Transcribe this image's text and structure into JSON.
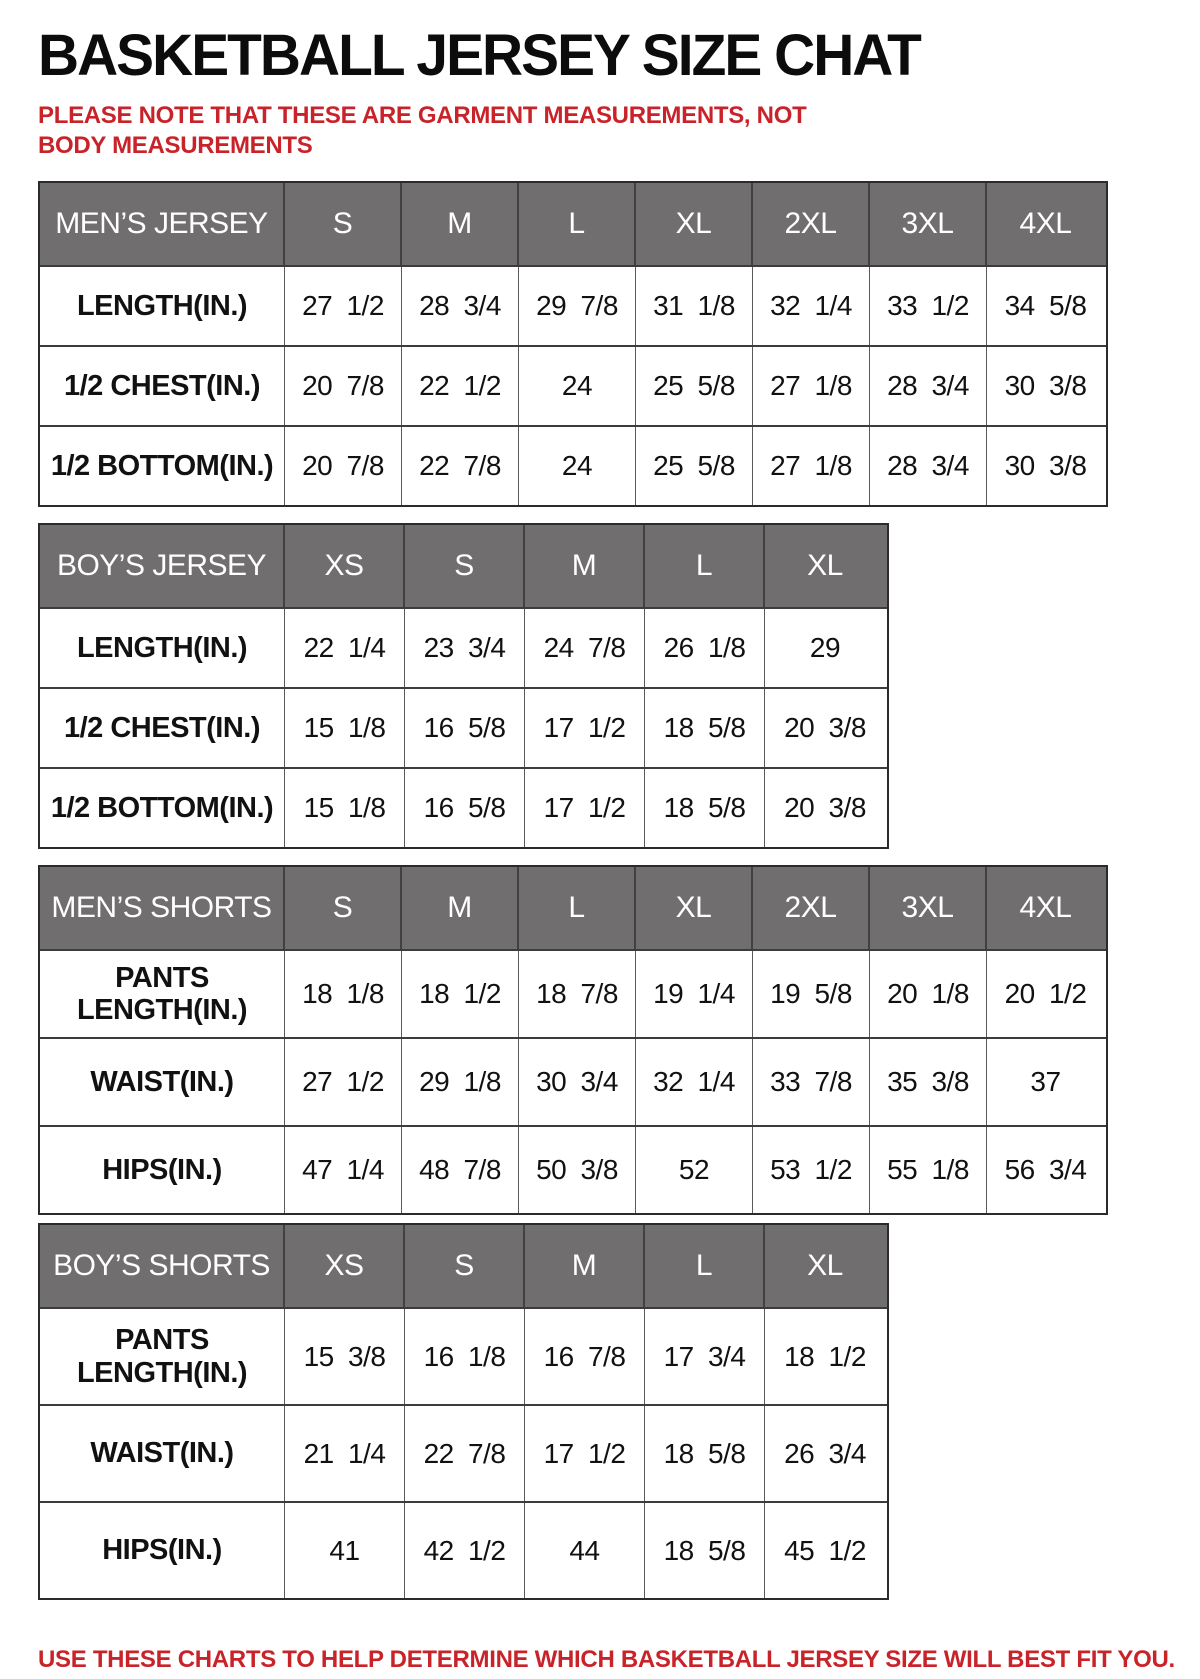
{
  "page": {
    "title": "BASKETBALL JERSEY SIZE CHAT",
    "note": "PLEASE NOTE THAT THESE ARE GARMENT MEASUREMENTS, NOT BODY MEASUREMENTS",
    "footer": "USE THESE CHARTS TO HELP DETERMINE WHICH BASKETBALL JERSEY SIZE WILL BEST FIT YOU.",
    "colors": {
      "accent_red": "#c9232a",
      "header_gray": "#706e6f",
      "header_text": "#ffffff",
      "body_text": "#111111"
    }
  },
  "tables": [
    {
      "id": "mens-jersey",
      "header": [
        "MEN’S JERSEY",
        "S",
        "M",
        "L",
        "XL",
        "2XL",
        "3XL",
        "4XL"
      ],
      "rows": [
        {
          "label": "LENGTH(IN.)",
          "values": [
            "27 1/2",
            "28 3/4",
            "29 7/8",
            "31 1/8",
            "32 1/4",
            "33 1/2",
            "34 5/8"
          ]
        },
        {
          "label": "1/2 CHEST(IN.)",
          "values": [
            "20 7/8",
            "22 1/2",
            "24",
            "25 5/8",
            "27 1/8",
            "28 3/4",
            "30 3/8"
          ]
        },
        {
          "label": "1/2 BOTTOM(IN.)",
          "values": [
            "20 7/8",
            "22 7/8",
            "24",
            "25 5/8",
            "27 1/8",
            "28 3/4",
            "30 3/8"
          ]
        }
      ]
    },
    {
      "id": "boys-jersey",
      "header": [
        "BOY’S JERSEY",
        "XS",
        "S",
        "M",
        "L",
        "XL"
      ],
      "rows": [
        {
          "label": "LENGTH(IN.)",
          "values": [
            "22 1/4",
            "23 3/4",
            "24 7/8",
            "26 1/8",
            "29"
          ]
        },
        {
          "label": "1/2 CHEST(IN.)",
          "values": [
            "15 1/8",
            "16 5/8",
            "17 1/2",
            "18 5/8",
            "20 3/8"
          ]
        },
        {
          "label": "1/2 BOTTOM(IN.)",
          "values": [
            "15 1/8",
            "16 5/8",
            "17 1/2",
            "18 5/8",
            "20 3/8"
          ]
        }
      ]
    },
    {
      "id": "mens-shorts",
      "header": [
        "MEN’S SHORTS",
        "S",
        "M",
        "L",
        "XL",
        "2XL",
        "3XL",
        "4XL"
      ],
      "rows": [
        {
          "label": "PANTS LENGTH(IN.)",
          "values": [
            "18 1/8",
            "18 1/2",
            "18 7/8",
            "19 1/4",
            "19 5/8",
            "20 1/8",
            "20 1/2"
          ]
        },
        {
          "label": "WAIST(IN.)",
          "values": [
            "27 1/2",
            "29 1/8",
            "30 3/4",
            "32 1/4",
            "33 7/8",
            "35 3/8",
            "37"
          ]
        },
        {
          "label": "HIPS(IN.)",
          "values": [
            "47 1/4",
            "48 7/8",
            "50 3/8",
            "52",
            "53 1/2",
            "55 1/8",
            "56 3/4"
          ]
        }
      ]
    },
    {
      "id": "boys-shorts",
      "header": [
        "BOY’S SHORTS",
        "XS",
        "S",
        "M",
        "L",
        "XL"
      ],
      "rows": [
        {
          "label": "PANTS LENGTH(IN.)",
          "values": [
            "15 3/8",
            "16 1/8",
            "16 7/8",
            "17 3/4",
            "18 1/2"
          ]
        },
        {
          "label": "WAIST(IN.)",
          "values": [
            "21 1/4",
            "22 7/8",
            "17 1/2",
            "18 5/8",
            "26 3/4"
          ]
        },
        {
          "label": "HIPS(IN.)",
          "values": [
            "41",
            "42 1/2",
            "44",
            "18 5/8",
            "45 1/2"
          ]
        }
      ]
    }
  ]
}
